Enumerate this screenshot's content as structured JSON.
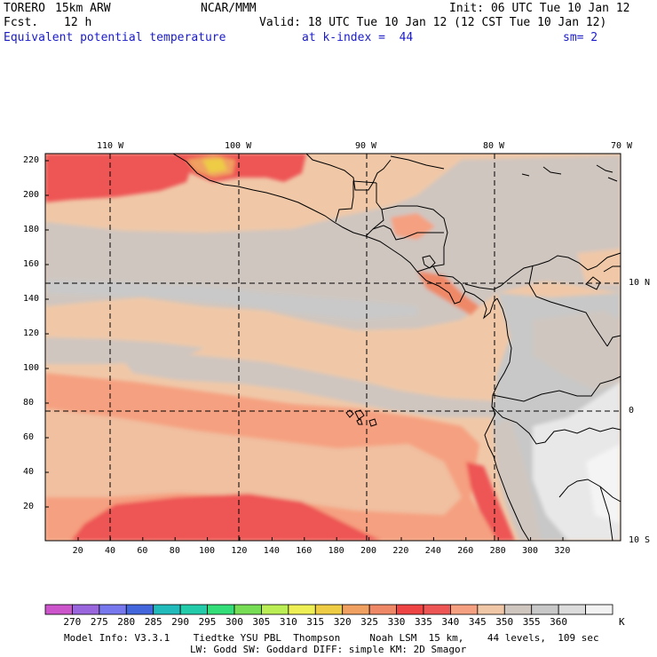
{
  "header": {
    "model": "TORERO",
    "resolution": "15km ARW",
    "center": "NCAR/MMM",
    "init": "Init: 06 UTC Tue 10 Jan 12",
    "fcst_label": "Fcst.",
    "fcst_value": "12 h",
    "valid": "Valid: 18 UTC Tue 10 Jan 12 (12 CST Tue 10 Jan 12)",
    "field": "Equivalent potential temperature",
    "level": "at k-index =  44",
    "smooth": "sm= 2"
  },
  "map": {
    "top_lon_labels": [
      "110 W",
      "100 W",
      "90 W",
      "80 W",
      "70 W"
    ],
    "right_lat_labels": [
      "10 N",
      "0",
      "10 S"
    ],
    "left_y_ticks": [
      "220",
      "200",
      "180",
      "160",
      "140",
      "120",
      "100",
      "80",
      "60",
      "40",
      "20"
    ],
    "bottom_x_ticks": [
      "20",
      "40",
      "60",
      "80",
      "100",
      "120",
      "140",
      "160",
      "180",
      "200",
      "220",
      "240",
      "260",
      "280",
      "300",
      "320"
    ]
  },
  "colorbar": {
    "unit": "K",
    "labels": [
      "270",
      "275",
      "280",
      "285",
      "290",
      "295",
      "300",
      "305",
      "310",
      "315",
      "320",
      "325",
      "330",
      "335",
      "340",
      "345",
      "350",
      "355",
      "360"
    ],
    "colors": [
      "#cc55cc",
      "#9966dd",
      "#7777ee",
      "#4466dd",
      "#22bbbb",
      "#22ccaa",
      "#33dd77",
      "#77dd55",
      "#bbee55",
      "#eeee55",
      "#eecc44",
      "#f0a060",
      "#ee8866",
      "#ee4444",
      "#ee5555",
      "#f5a080",
      "#f0c8a8",
      "#cfc6c0",
      "#c8c8c8",
      "#dcdcdc",
      "#f2f2f2"
    ]
  },
  "footer": {
    "line1": "Model Info: V3.3.1    Tiedtke YSU PBL  Thompson     Noah LSM  15 km,    44 levels,  109 sec",
    "line2": "LW: Godd SW: Goddard DIFF: simple KM: 2D Smagor"
  }
}
